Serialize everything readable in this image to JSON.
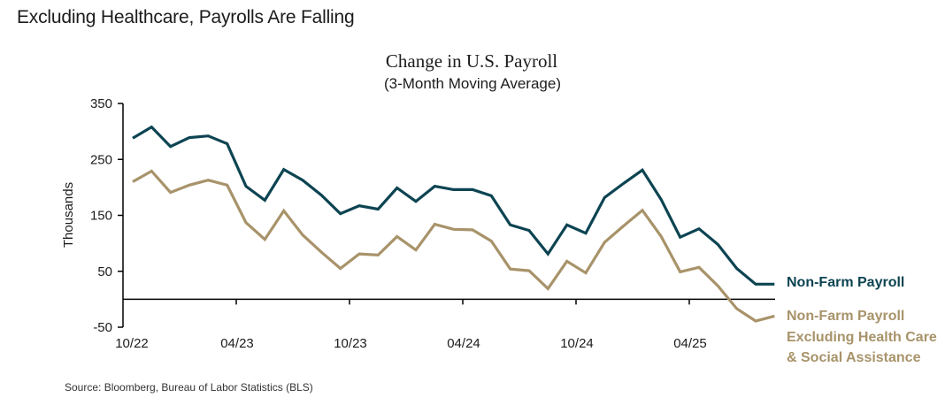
{
  "header": {
    "title": "Excluding Healthcare, Payrolls Are Falling"
  },
  "footer": {
    "source": "Source: Bloomberg, Bureau of Labor Statistics (BLS)"
  },
  "colors": {
    "nfp": "#0d4452",
    "ex_health": "#a8936a",
    "axis": "#000000"
  },
  "chart_data": {
    "type": "line",
    "title": "Change in U.S. Payroll",
    "subtitle": "(3-Month Moving Average)",
    "xlabel": "",
    "ylabel": "Thousands",
    "ylim": [
      -50,
      350
    ],
    "yticks": [
      350,
      250,
      150,
      50,
      -50
    ],
    "grid": false,
    "legend_placement": "right",
    "x_tick_labels": [
      "10/22",
      "04/23",
      "10/23",
      "04/24",
      "10/24",
      "04/25"
    ],
    "x": [
      "11/22",
      "12/22",
      "01/23",
      "02/23",
      "03/23",
      "04/23",
      "05/23",
      "06/23",
      "07/23",
      "08/23",
      "09/23",
      "10/23",
      "11/23",
      "12/23",
      "01/24",
      "02/24",
      "03/24",
      "04/24",
      "05/24",
      "06/24",
      "07/24",
      "08/24",
      "09/24",
      "10/24",
      "11/24",
      "12/24",
      "01/25",
      "02/25",
      "03/25",
      "04/25",
      "05/25",
      "06/25",
      "07/25",
      "08/25",
      "09/25"
    ],
    "series": [
      {
        "name": "Non-Farm Payroll",
        "color": "#0d4452",
        "values": [
          288,
          308,
          273,
          289,
          292,
          278,
          202,
          177,
          232,
          213,
          186,
          153,
          167,
          161,
          199,
          175,
          202,
          196,
          196,
          185,
          133,
          123,
          81,
          133,
          118,
          182,
          207,
          231,
          178,
          111,
          126,
          98,
          55,
          27,
          27
        ]
      },
      {
        "name": "Non-Farm Payroll Excluding Health Care & Social Assistance",
        "color": "#a8936a",
        "values": [
          210,
          229,
          191,
          204,
          213,
          204,
          137,
          107,
          158,
          115,
          84,
          55,
          81,
          79,
          112,
          88,
          134,
          125,
          124,
          104,
          54,
          51,
          19,
          68,
          47,
          102,
          131,
          159,
          112,
          49,
          57,
          24,
          -17,
          -39,
          -30
        ]
      }
    ]
  }
}
